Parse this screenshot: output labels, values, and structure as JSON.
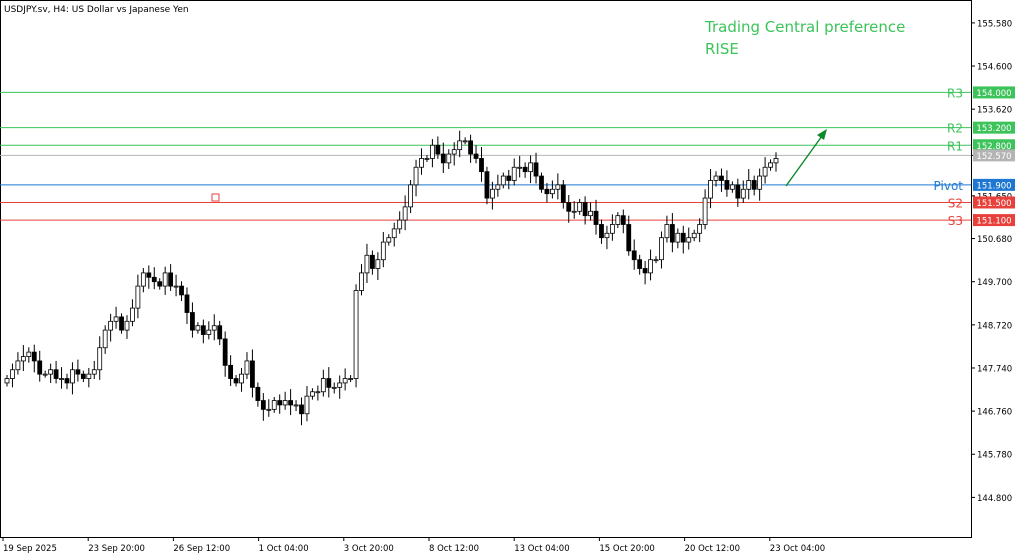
{
  "header": {
    "title": "USDJPY.sv, H4:  US Dollar vs Japanese Yen"
  },
  "preference": {
    "line1": "Trading Central preference",
    "line2": "RISE",
    "color": "#3cc35a"
  },
  "colors": {
    "green": "#3cc35a",
    "blue": "#1e78d2",
    "red": "#e8413c",
    "gray": "#b4b4b4",
    "candle": "#000000",
    "arrow": "#0a8a2a"
  },
  "chart_data": {
    "type": "candlestick",
    "symbol": "USDJPY.sv",
    "timeframe": "H4",
    "ylim": [
      143.9,
      156.1
    ],
    "y_ticks": [
      "155.580",
      "154.600",
      "153.620",
      "152.570",
      "151.650",
      "150.680",
      "149.700",
      "148.720",
      "147.740",
      "146.760",
      "145.780",
      "144.800"
    ],
    "x_labels": [
      "19 Sep 2025",
      "23 Sep 20:00",
      "26 Sep 12:00",
      "1 Oct 04:00",
      "3 Oct 20:00",
      "8 Oct 12:00",
      "13 Oct 04:00",
      "15 Oct 20:00",
      "20 Oct 12:00",
      "23 Oct 04:00"
    ],
    "levels": [
      {
        "name": "R3",
        "value": 154.0,
        "price_label": "154.000",
        "color": "green"
      },
      {
        "name": "R2",
        "value": 153.2,
        "price_label": "153.200",
        "color": "green"
      },
      {
        "name": "R1",
        "value": 152.8,
        "price_label": "152.800",
        "color": "green"
      },
      {
        "name": "Pivot",
        "value": 151.9,
        "price_label": "151.900",
        "color": "blue"
      },
      {
        "name": "S2",
        "value": 151.5,
        "price_label": "151.500",
        "color": "red"
      },
      {
        "name": "S3",
        "value": 151.1,
        "price_label": "151.100",
        "color": "red"
      }
    ],
    "current_price": {
      "value": 152.57,
      "label": "152.570"
    },
    "closes": [
      147.5,
      147.7,
      147.9,
      148.0,
      148.1,
      147.9,
      147.6,
      147.6,
      147.7,
      147.5,
      147.5,
      147.4,
      147.7,
      147.6,
      147.5,
      147.6,
      147.7,
      148.2,
      148.6,
      148.8,
      148.9,
      148.6,
      148.8,
      149.1,
      149.6,
      149.9,
      149.8,
      149.7,
      149.6,
      149.9,
      149.6,
      149.6,
      149.4,
      149.0,
      148.6,
      148.7,
      148.5,
      148.6,
      148.7,
      148.4,
      147.8,
      147.5,
      147.4,
      147.6,
      147.9,
      147.3,
      147.0,
      146.8,
      146.8,
      147.0,
      146.9,
      147.0,
      146.9,
      146.9,
      146.7,
      147.1,
      147.2,
      147.2,
      147.5,
      147.3,
      147.3,
      147.4,
      147.5,
      147.5,
      149.5,
      149.9,
      150.3,
      150.0,
      150.2,
      150.6,
      150.7,
      150.9,
      151.1,
      151.4,
      151.9,
      152.3,
      152.5,
      152.5,
      152.8,
      152.6,
      152.4,
      152.6,
      152.7,
      152.9,
      152.9,
      152.6,
      152.5,
      152.2,
      151.6,
      151.8,
      151.9,
      152.1,
      152.0,
      152.3,
      152.3,
      152.2,
      152.4,
      152.1,
      151.8,
      151.7,
      151.8,
      151.9,
      151.5,
      151.3,
      151.3,
      151.5,
      151.2,
      151.3,
      151.0,
      150.7,
      150.8,
      151.0,
      151.2,
      151.0,
      150.4,
      150.2,
      150.0,
      149.9,
      150.2,
      150.2,
      150.7,
      151.0,
      150.6,
      150.8,
      150.6,
      150.7,
      150.8,
      151.0,
      151.6,
      152.0,
      152.1,
      152.0,
      151.8,
      151.9,
      151.6,
      151.8,
      152.0,
      151.8,
      152.1,
      152.3,
      152.4,
      152.5
    ]
  }
}
